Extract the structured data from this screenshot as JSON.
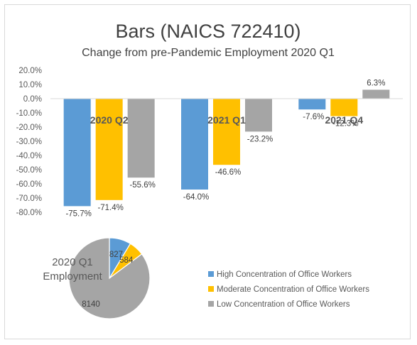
{
  "chart_data": [
    {
      "type": "bar",
      "title": "Bars (NAICS 722410)",
      "subtitle": "Change from pre-Pandemic Employment 2020 Q1",
      "categories": [
        "2020 Q2",
        "2021 Q1",
        "2021 Q4"
      ],
      "series": [
        {
          "name": "High Concentration of Office Workers",
          "color": "#5b9bd5",
          "values": [
            -75.7,
            -64.0,
            -7.6
          ]
        },
        {
          "name": "Moderate Concentration of Office Workers",
          "color": "#ffc000",
          "values": [
            -71.4,
            -46.6,
            -12.3
          ]
        },
        {
          "name": "Low Concentration of Office Workers",
          "color": "#a5a5a5",
          "values": [
            -55.6,
            -23.2,
            6.3
          ]
        }
      ],
      "data_labels": [
        [
          "-75.7%",
          "-64.0%",
          "-7.6%"
        ],
        [
          "-71.4%",
          "-46.6%",
          "-12.3%"
        ],
        [
          "-55.6%",
          "-23.2%",
          "6.3%"
        ]
      ],
      "ylim": [
        -80,
        20
      ],
      "yticks": [
        20,
        10,
        0,
        -10,
        -20,
        -30,
        -40,
        -50,
        -60,
        -70,
        -80
      ],
      "ytick_labels": [
        "20.0%",
        "10.0%",
        "0.0%",
        "-10.0%",
        "-20.0%",
        "-30.0%",
        "-40.0%",
        "-50.0%",
        "-60.0%",
        "-70.0%",
        "-80.0%"
      ],
      "grid": false,
      "legend": "bottom-right"
    },
    {
      "type": "pie",
      "title": "2020 Q1 Employment",
      "title_lines": [
        "2020 Q1",
        "Employment"
      ],
      "labels": [
        "High Concentration of Office Workers",
        "Moderate Concentration of Office Workers",
        "Low Concentration of Office Workers"
      ],
      "values": [
        827,
        584,
        8140
      ],
      "value_labels": [
        "827",
        "584",
        "8140"
      ],
      "colors": [
        "#5b9bd5",
        "#ffc000",
        "#a5a5a5"
      ]
    }
  ]
}
